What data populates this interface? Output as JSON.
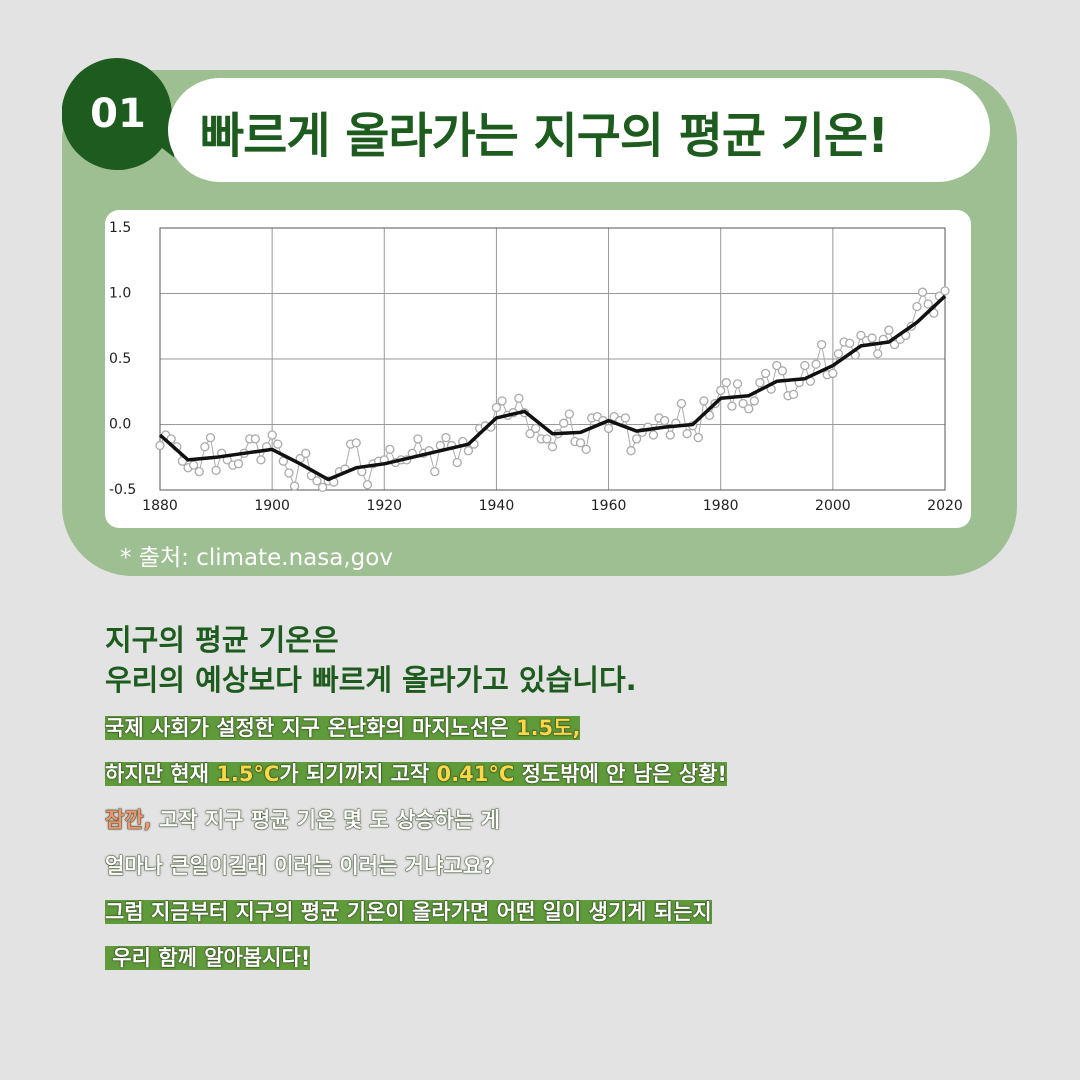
{
  "header": {
    "number": "01",
    "title": "빠르게 올라가는 지구의 평균 기온!"
  },
  "chart_data": {
    "type": "line",
    "x": [
      1880,
      1881,
      1882,
      1883,
      1884,
      1885,
      1886,
      1887,
      1888,
      1889,
      1890,
      1891,
      1892,
      1893,
      1894,
      1895,
      1896,
      1897,
      1898,
      1899,
      1900,
      1901,
      1902,
      1903,
      1904,
      1905,
      1906,
      1907,
      1908,
      1909,
      1910,
      1911,
      1912,
      1913,
      1914,
      1915,
      1916,
      1917,
      1918,
      1919,
      1920,
      1921,
      1922,
      1923,
      1924,
      1925,
      1926,
      1927,
      1928,
      1929,
      1930,
      1931,
      1932,
      1933,
      1934,
      1935,
      1936,
      1937,
      1938,
      1939,
      1940,
      1941,
      1942,
      1943,
      1944,
      1945,
      1946,
      1947,
      1948,
      1949,
      1950,
      1951,
      1952,
      1953,
      1954,
      1955,
      1956,
      1957,
      1958,
      1959,
      1960,
      1961,
      1962,
      1963,
      1964,
      1965,
      1966,
      1967,
      1968,
      1969,
      1970,
      1971,
      1972,
      1973,
      1974,
      1975,
      1976,
      1977,
      1978,
      1979,
      1980,
      1981,
      1982,
      1983,
      1984,
      1985,
      1986,
      1987,
      1988,
      1989,
      1990,
      1991,
      1992,
      1993,
      1994,
      1995,
      1996,
      1997,
      1998,
      1999,
      2000,
      2001,
      2002,
      2003,
      2004,
      2005,
      2006,
      2007,
      2008,
      2009,
      2010,
      2011,
      2012,
      2013,
      2014,
      2015,
      2016,
      2017,
      2018,
      2019,
      2020
    ],
    "series": [
      {
        "color": "#aaaaaa",
        "values": [
          -0.16,
          -0.08,
          -0.11,
          -0.17,
          -0.28,
          -0.33,
          -0.31,
          -0.36,
          -0.17,
          -0.1,
          -0.35,
          -0.22,
          -0.27,
          -0.31,
          -0.3,
          -0.22,
          -0.11,
          -0.11,
          -0.27,
          -0.17,
          -0.08,
          -0.15,
          -0.28,
          -0.37,
          -0.47,
          -0.26,
          -0.22,
          -0.39,
          -0.43,
          -0.48,
          -0.43,
          -0.44,
          -0.36,
          -0.34,
          -0.15,
          -0.14,
          -0.36,
          -0.46,
          -0.3,
          -0.28,
          -0.27,
          -0.19,
          -0.29,
          -0.27,
          -0.27,
          -0.22,
          -0.11,
          -0.22,
          -0.2,
          -0.36,
          -0.16,
          -0.1,
          -0.16,
          -0.29,
          -0.13,
          -0.2,
          -0.15,
          -0.03,
          -0.01,
          -0.02,
          0.13,
          0.18,
          0.07,
          0.09,
          0.2,
          0.09,
          -0.07,
          -0.03,
          -0.11,
          -0.11,
          -0.17,
          -0.07,
          0.01,
          0.08,
          -0.13,
          -0.14,
          -0.19,
          0.05,
          0.06,
          0.03,
          -0.03,
          0.06,
          0.03,
          0.05,
          -0.2,
          -0.11,
          -0.06,
          -0.02,
          -0.08,
          0.05,
          0.03,
          -0.08,
          0.01,
          0.16,
          -0.07,
          -0.01,
          -0.1,
          0.18,
          0.07,
          0.16,
          0.26,
          0.32,
          0.14,
          0.31,
          0.16,
          0.12,
          0.18,
          0.32,
          0.39,
          0.27,
          0.45,
          0.41,
          0.22,
          0.23,
          0.32,
          0.45,
          0.33,
          0.46,
          0.61,
          0.38,
          0.39,
          0.54,
          0.63,
          0.62,
          0.53,
          0.68,
          0.64,
          0.66,
          0.54,
          0.65,
          0.72,
          0.61,
          0.65,
          0.68,
          0.75,
          0.9,
          1.01,
          0.92,
          0.85,
          0.98,
          1.02
        ]
      },
      {
        "color": "#111111",
        "x": [
          1880,
          1885,
          1890,
          1895,
          1900,
          1905,
          1910,
          1915,
          1920,
          1925,
          1930,
          1935,
          1940,
          1945,
          1950,
          1955,
          1960,
          1965,
          1970,
          1975,
          1980,
          1985,
          1990,
          1995,
          2000,
          2005,
          2010,
          2015,
          2020
        ],
        "values": [
          -0.08,
          -0.27,
          -0.25,
          -0.22,
          -0.19,
          -0.3,
          -0.42,
          -0.33,
          -0.3,
          -0.25,
          -0.2,
          -0.15,
          0.05,
          0.1,
          -0.07,
          -0.06,
          0.03,
          -0.05,
          -0.02,
          0.0,
          0.2,
          0.22,
          0.33,
          0.35,
          0.45,
          0.6,
          0.63,
          0.78,
          0.98
        ]
      }
    ],
    "xlim": [
      1880,
      2020
    ],
    "xticks": [
      1880,
      1900,
      1920,
      1940,
      1960,
      1980,
      2000,
      2020
    ],
    "ylim": [
      -0.5,
      1.5
    ],
    "yticks": [
      -0.5,
      {
        "value": 0,
        "label": "0.0"
      },
      0.5,
      {
        "value": 1,
        "label": "1.0"
      },
      1.5
    ],
    "grid": true
  },
  "source": "* 출처: climate.nasa,gov",
  "heading": [
    "지구의 평균 기온은",
    "우리의 예상보다 빠르게 올라가고 있습니다."
  ],
  "body": {
    "lines": [
      [
        "국제 사회가 설정한 지구 온난화의 마지노선은 ",
        "1.5도,"
      ],
      [
        "하지만 현재 ",
        "1.5°C",
        "가 되기까지 고작 ",
        "0.41°C",
        " 정도밖에 안 남은 상황!"
      ],
      [
        "잠깐,",
        " 고작 지구 평균 기온 몇 도 상승하는 게"
      ],
      [
        "얼마나 큰일이길래 이러는 이러는 거냐고요?"
      ],
      [
        "그럼 지금부터 지구의 평균 기온이 올라가면 어떤 일이 생기게 되는지"
      ],
      [
        " 우리 함께 알아봅시다!"
      ]
    ]
  }
}
